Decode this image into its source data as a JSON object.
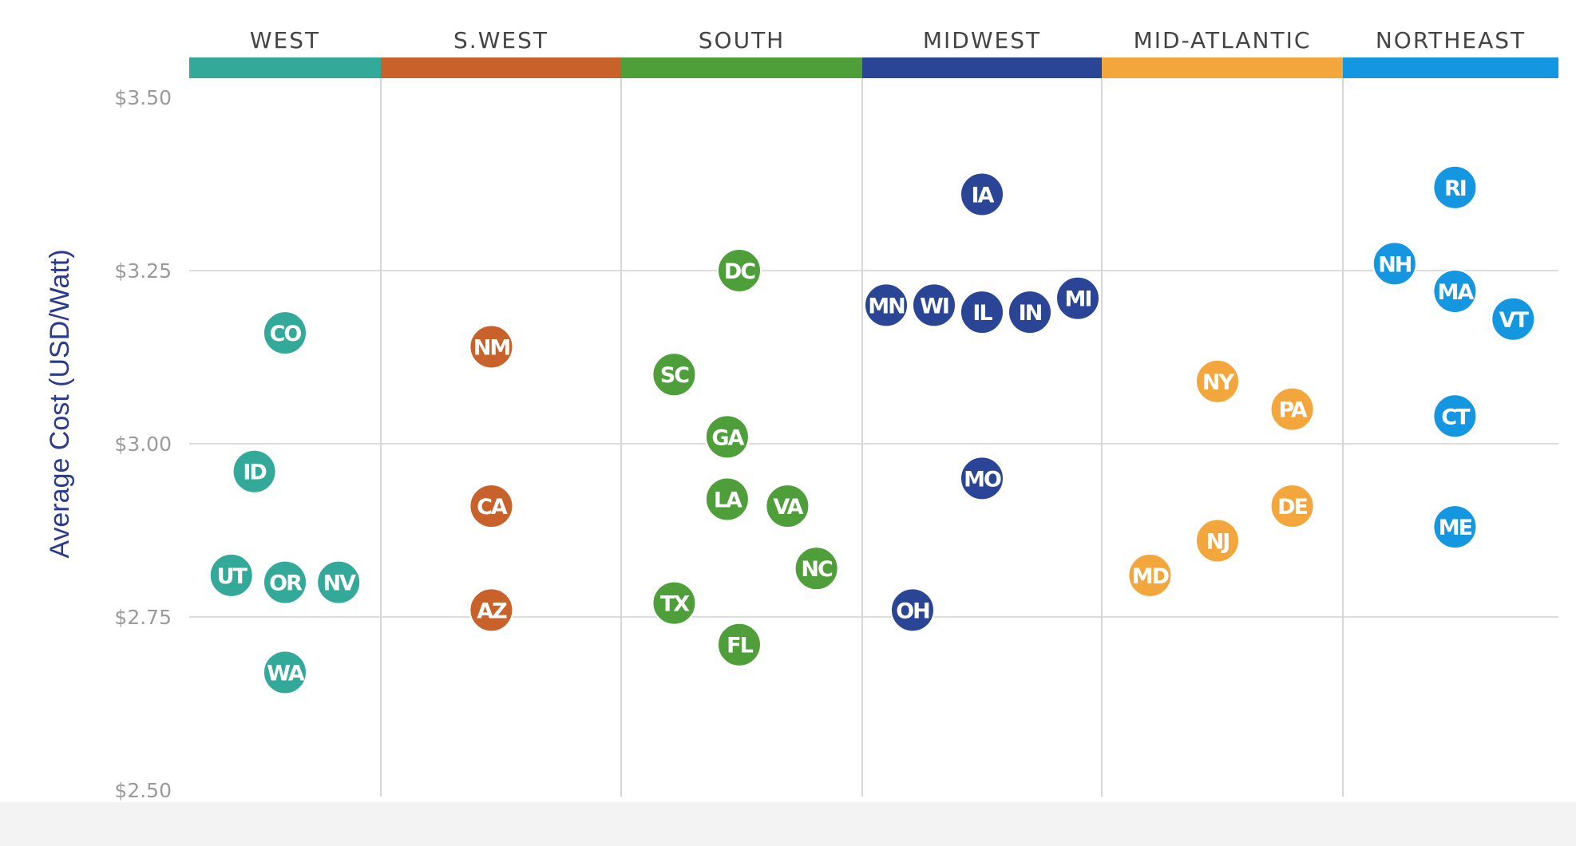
{
  "chart_data": {
    "type": "scatter",
    "ylabel": "Average Cost (USD/Watt)",
    "ylim": [
      2.5,
      3.5
    ],
    "yticks": [
      {
        "value": 3.5,
        "label": "$3.50"
      },
      {
        "value": 3.25,
        "label": "$3.25"
      },
      {
        "value": 3.0,
        "label": "$3.00"
      },
      {
        "value": 2.75,
        "label": "$2.75"
      },
      {
        "value": 2.5,
        "label": "$2.50"
      }
    ],
    "grid": true,
    "categories": [
      "WEST",
      "S.WEST",
      "SOUTH",
      "MIDWEST",
      "MID-ATLANTIC",
      "NORTHEAST"
    ],
    "region_colors": {
      "WEST": "#33a99a",
      "S.WEST": "#c8612a",
      "SOUTH": "#4e9e3a",
      "MIDWEST": "#2b4596",
      "MID-ATLANTIC": "#f2a63b",
      "NORTHEAST": "#1596e0"
    },
    "series": [
      {
        "name": "WEST",
        "points": [
          {
            "label": "CO",
            "x": 0.5,
            "y": 3.16
          },
          {
            "label": "ID",
            "x": 0.34,
            "y": 2.96
          },
          {
            "label": "UT",
            "x": 0.22,
            "y": 2.81
          },
          {
            "label": "OR",
            "x": 0.5,
            "y": 2.8
          },
          {
            "label": "NV",
            "x": 0.78,
            "y": 2.8
          },
          {
            "label": "WA",
            "x": 0.5,
            "y": 2.67
          }
        ]
      },
      {
        "name": "S.WEST",
        "points": [
          {
            "label": "NM",
            "x": 0.46,
            "y": 3.14
          },
          {
            "label": "CA",
            "x": 0.46,
            "y": 2.91
          },
          {
            "label": "AZ",
            "x": 0.46,
            "y": 2.76
          }
        ]
      },
      {
        "name": "SOUTH",
        "points": [
          {
            "label": "DC",
            "x": 0.49,
            "y": 3.25
          },
          {
            "label": "SC",
            "x": 0.22,
            "y": 3.1
          },
          {
            "label": "GA",
            "x": 0.44,
            "y": 3.01
          },
          {
            "label": "LA",
            "x": 0.44,
            "y": 2.92
          },
          {
            "label": "VA",
            "x": 0.69,
            "y": 2.91
          },
          {
            "label": "NC",
            "x": 0.81,
            "y": 2.82
          },
          {
            "label": "TX",
            "x": 0.22,
            "y": 2.77
          },
          {
            "label": "FL",
            "x": 0.49,
            "y": 2.71
          }
        ]
      },
      {
        "name": "MIDWEST",
        "points": [
          {
            "label": "IA",
            "x": 0.5,
            "y": 3.36
          },
          {
            "label": "MN",
            "x": 0.1,
            "y": 3.2
          },
          {
            "label": "WI",
            "x": 0.3,
            "y": 3.2
          },
          {
            "label": "IL",
            "x": 0.5,
            "y": 3.19
          },
          {
            "label": "IN",
            "x": 0.7,
            "y": 3.19
          },
          {
            "label": "MI",
            "x": 0.9,
            "y": 3.21
          },
          {
            "label": "MO",
            "x": 0.5,
            "y": 2.95
          },
          {
            "label": "OH",
            "x": 0.21,
            "y": 2.76
          }
        ]
      },
      {
        "name": "MID-ATLANTIC",
        "points": [
          {
            "label": "NY",
            "x": 0.48,
            "y": 3.09
          },
          {
            "label": "PA",
            "x": 0.79,
            "y": 3.05
          },
          {
            "label": "DE",
            "x": 0.79,
            "y": 2.91
          },
          {
            "label": "NJ",
            "x": 0.48,
            "y": 2.86
          },
          {
            "label": "MD",
            "x": 0.2,
            "y": 2.81
          }
        ]
      },
      {
        "name": "NORTHEAST",
        "points": [
          {
            "label": "RI",
            "x": 0.52,
            "y": 3.37
          },
          {
            "label": "NH",
            "x": 0.24,
            "y": 3.26
          },
          {
            "label": "MA",
            "x": 0.52,
            "y": 3.22
          },
          {
            "label": "VT",
            "x": 0.79,
            "y": 3.18
          },
          {
            "label": "CT",
            "x": 0.52,
            "y": 3.04
          },
          {
            "label": "ME",
            "x": 0.52,
            "y": 2.88
          }
        ]
      }
    ]
  }
}
